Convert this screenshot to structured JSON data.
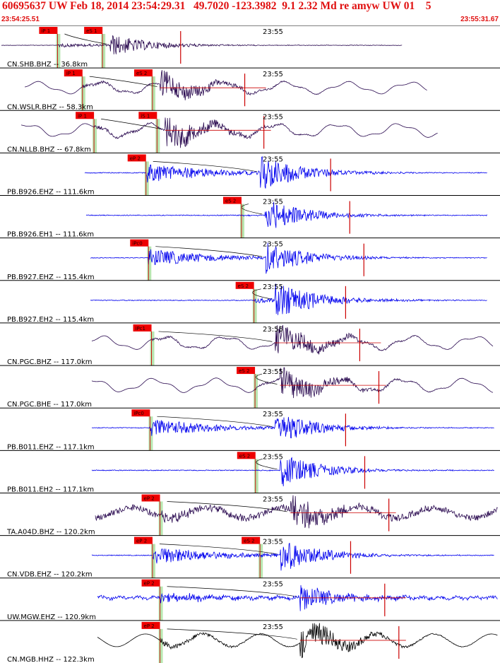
{
  "header": {
    "title": "60695637 UW Feb 18, 2014 23:54:29.31   49.7020 -123.3982  9.1 2.32 Md re amyw UW 01    5",
    "start_time": "23:54:25.51",
    "end_time": "23:55:31.67"
  },
  "colors": {
    "header_text": "#e01010",
    "pick_box": "#ee0000",
    "pick_window": "#b8e6b0",
    "trace_blue": "#0000ee",
    "trace_purple": "#2a0a50",
    "trace_black": "#000000",
    "coda_line": "#cc0000"
  },
  "chart_data": {
    "type": "line",
    "x_range": [
      "23:54:25.51",
      "23:55:31.67"
    ],
    "time_mark": "23:55",
    "traces": [
      {
        "label": "CN.SHB.BHZ -- 36.8km",
        "color": "#2a0a50",
        "picks": [
          {
            "label": "iP 1",
            "t": 0.115
          },
          {
            "label": "eS 1",
            "t": 0.205
          }
        ]
      },
      {
        "label": "CN.WSLR.BHZ -- 58.3km",
        "color": "#2a0a50",
        "picks": [
          {
            "label": "iP 1",
            "t": 0.165
          },
          {
            "label": "eS 2",
            "t": 0.305
          }
        ]
      },
      {
        "label": "CN.NLLB.BHZ -- 67.8km",
        "color": "#2a0a50",
        "picks": [
          {
            "label": "iP 1",
            "t": 0.188
          },
          {
            "label": "iS 1",
            "t": 0.314
          }
        ]
      },
      {
        "label": "PB.B926.EHZ -- 111.6km",
        "color": "#0000ee",
        "picks": [
          {
            "label": "eP 2",
            "t": 0.292
          }
        ]
      },
      {
        "label": "PB.B926.EH1 -- 111.6km",
        "color": "#0000ee",
        "picks": [
          {
            "label": "eS 2",
            "t": 0.483
          }
        ]
      },
      {
        "label": "PB.B927.EHZ -- 115.4km",
        "color": "#0000ee",
        "picks": [
          {
            "label": "iPc0",
            "t": 0.297
          }
        ]
      },
      {
        "label": "PB.B927.EH2 -- 115.4km",
        "color": "#0000ee",
        "picks": [
          {
            "label": "eS 2",
            "t": 0.508
          }
        ]
      },
      {
        "label": "CN.PGC.BHZ -- 117.0km",
        "color": "#2a0a50",
        "picks": [
          {
            "label": "iPc1",
            "t": 0.303
          }
        ]
      },
      {
        "label": "CN.PGC.BHE -- 117.0km",
        "color": "#2a0a50",
        "picks": [
          {
            "label": "eS 2",
            "t": 0.51
          }
        ]
      },
      {
        "label": "PB.B011.EHZ -- 117.1km",
        "color": "#0000ee",
        "picks": [
          {
            "label": "iPc0",
            "t": 0.3
          }
        ]
      },
      {
        "label": "PB.B011.EH2 -- 117.1km",
        "color": "#0000ee",
        "picks": [
          {
            "label": "eS 2",
            "t": 0.511
          }
        ]
      },
      {
        "label": "TA.A04D.BHZ -- 120.2km",
        "color": "#2a0a50",
        "picks": [
          {
            "label": "eP 2",
            "t": 0.32
          }
        ]
      },
      {
        "label": "CN.VDB.EHZ -- 120.2km",
        "color": "#0000ee",
        "picks": [
          {
            "label": "eP 2",
            "t": 0.305
          },
          {
            "label": "eS 2",
            "t": 0.52
          }
        ]
      },
      {
        "label": "UW.MGW.EHZ -- 120.9km",
        "color": "#0000ee",
        "picks": [
          {
            "label": "eP 2",
            "t": 0.32
          }
        ]
      },
      {
        "label": "CN.MGB.HHZ -- 122.3km",
        "color": "#000000",
        "picks": [
          {
            "label": "eP 2",
            "t": 0.32
          }
        ]
      }
    ]
  }
}
